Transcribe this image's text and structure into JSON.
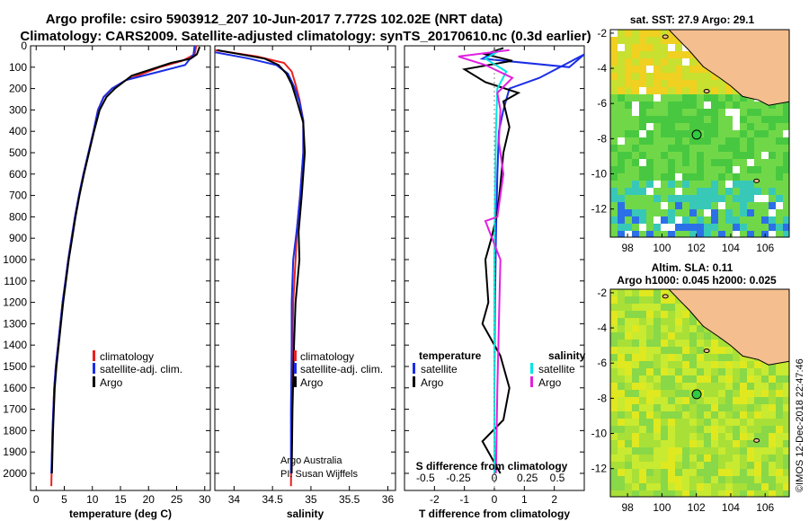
{
  "colors": {
    "climatology": "#e82020",
    "satellite": "#1a2ee6",
    "argo": "#000000",
    "salinity_sat": "#00e5e5",
    "salinity_argo": "#e020e0",
    "land": "#f4be8e",
    "ocean_base": "#6fd24a",
    "marker": "#2ecc40"
  },
  "title": {
    "line1": "Argo profile: csiro 5903912_207 10-Jun-2017 7.772S 102.02E (NRT data)",
    "line2": "Climatology: CARS2009. Satellite-adjusted climatology: synTS_20170610.nc (0.3d earlier)"
  },
  "credit": {
    "owner": "Argo Australia",
    "pi": "PI: Susan Wijffels",
    "stamp": "©IMOS 12-Dec-2018 22:47:46"
  },
  "chart_data": [
    {
      "type": "line",
      "name": "temperature",
      "xlabel": "temperature (deg C)",
      "ylabel": "",
      "xlim": [
        -1,
        31
      ],
      "ylim": [
        2080,
        0
      ],
      "xticks": [
        0,
        5,
        10,
        15,
        20,
        25,
        30
      ],
      "yticks": [
        0,
        100,
        200,
        300,
        400,
        500,
        600,
        700,
        800,
        900,
        1000,
        1100,
        1200,
        1300,
        1400,
        1500,
        1600,
        1700,
        1800,
        1900,
        2000
      ],
      "legend": [
        "climatology",
        "satellite-adj. clim.",
        "Argo"
      ],
      "series": [
        {
          "name": "climatology",
          "color_key": "climatology",
          "x": [
            28.5,
            28.2,
            26,
            22,
            16,
            13.5,
            12,
            11,
            10.2,
            9.3,
            8.4,
            7.6,
            6.9,
            6.3,
            5.7,
            5.2,
            4.7,
            4.3,
            3.9,
            3.5,
            3.2,
            2.9,
            2.7
          ],
          "y": [
            0,
            40,
            70,
            100,
            160,
            200,
            240,
            300,
            400,
            500,
            600,
            700,
            800,
            900,
            1000,
            1100,
            1200,
            1300,
            1400,
            1500,
            1600,
            1800,
            2060
          ]
        },
        {
          "name": "satellite-adj. clim.",
          "color_key": "satellite",
          "x": [
            28.2,
            28,
            26.5,
            22,
            16,
            13.5,
            12,
            11,
            10.2,
            9.3,
            8.4,
            7.6,
            6.9,
            6.3,
            5.7,
            5.2,
            4.7,
            4.3,
            3.9,
            3.5,
            3.2,
            2.9,
            2.7
          ],
          "y": [
            0,
            40,
            90,
            120,
            160,
            200,
            240,
            300,
            400,
            500,
            600,
            700,
            800,
            900,
            1000,
            1100,
            1200,
            1300,
            1400,
            1500,
            1600,
            1800,
            2000
          ]
        },
        {
          "name": "Argo",
          "color_key": "argo",
          "x": [
            29.1,
            28.6,
            27.5,
            24,
            17,
            14,
            12.5,
            11.3,
            10.3,
            9.4,
            8.5,
            7.7,
            7,
            6.4,
            5.8,
            5.3,
            4.8,
            4.4,
            4,
            3.6,
            3.3,
            3,
            2.8
          ],
          "y": [
            5,
            40,
            60,
            80,
            140,
            200,
            240,
            300,
            400,
            500,
            600,
            700,
            800,
            900,
            1000,
            1100,
            1200,
            1300,
            1400,
            1500,
            1600,
            1800,
            2000
          ]
        }
      ]
    },
    {
      "type": "line",
      "name": "salinity",
      "xlabel": "salinity",
      "xlim": [
        33.75,
        36.1
      ],
      "ylim": [
        2080,
        0
      ],
      "xticks": [
        34,
        34.5,
        35,
        35.5,
        36
      ],
      "legend": [
        "climatology",
        "satellite-adj. clim.",
        "Argo"
      ],
      "series": [
        {
          "name": "climatology",
          "color_key": "climatology",
          "x": [
            33.75,
            34.3,
            34.65,
            34.75,
            34.8,
            34.85,
            34.9,
            34.9,
            34.86,
            34.82,
            34.8,
            34.77,
            34.76,
            34.75,
            34.74
          ],
          "y": [
            20,
            50,
            80,
            120,
            180,
            250,
            350,
            500,
            700,
            850,
            1000,
            1200,
            1400,
            1700,
            2060
          ]
        },
        {
          "name": "satellite-adj. clim.",
          "color_key": "satellite",
          "x": [
            33.75,
            34.2,
            34.55,
            34.7,
            34.78,
            34.85,
            34.9,
            34.9,
            34.86,
            34.82,
            34.77,
            34.75,
            34.75,
            34.74,
            34.74
          ],
          "y": [
            30,
            60,
            90,
            130,
            190,
            260,
            350,
            500,
            700,
            850,
            1000,
            1200,
            1400,
            1700,
            2000
          ]
        },
        {
          "name": "Argo",
          "color_key": "argo",
          "x": [
            33.78,
            34.4,
            34.58,
            34.68,
            34.75,
            34.82,
            34.9,
            34.92,
            34.88,
            34.84,
            34.85,
            34.8,
            34.78,
            34.76,
            34.75
          ],
          "y": [
            20,
            60,
            90,
            130,
            180,
            260,
            360,
            500,
            700,
            870,
            1000,
            1200,
            1400,
            1700,
            2000
          ]
        }
      ]
    },
    {
      "type": "line",
      "name": "difference",
      "xlabel": "T difference from climatology",
      "secondary_label": "S difference from climatology",
      "xlim": [
        -3,
        3
      ],
      "ylim": [
        2080,
        0
      ],
      "xticks": [
        -2,
        -1,
        0,
        1,
        2
      ],
      "secondary_ticks": [
        "-0.5",
        "-0.25",
        "0",
        "0.25",
        "0.5"
      ],
      "legend_t_title": "temperature",
      "legend_s_title": "salinity",
      "legend": [
        "satellite",
        "Argo",
        "satellite",
        "Argo"
      ],
      "series": [
        {
          "name": "T satellite",
          "color_key": "satellite",
          "x": [
            0,
            -0.4,
            2.5,
            3,
            1.5,
            0.5,
            0.3,
            0.15,
            0.1,
            0.05,
            0.02,
            0,
            0
          ],
          "y": [
            30,
            60,
            100,
            40,
            150,
            200,
            300,
            400,
            600,
            900,
            1200,
            1600,
            2000
          ]
        },
        {
          "name": "T Argo",
          "color_key": "argo",
          "x": [
            0.3,
            -0.3,
            0.6,
            -1,
            -0.3,
            0.8,
            0.3,
            0.5,
            0.3,
            0.2,
            0.1,
            -0.1,
            -0.3,
            -0.2,
            -0.4,
            0.2,
            0.5,
            0.3,
            -0.4,
            0.2
          ],
          "y": [
            10,
            40,
            70,
            110,
            170,
            220,
            260,
            380,
            500,
            650,
            780,
            900,
            1000,
            1200,
            1300,
            1450,
            1600,
            1750,
            1850,
            2000
          ]
        },
        {
          "name": "S satellite",
          "color_key": "salinity_sat",
          "x": [
            0.2,
            -0.3,
            0.4,
            0.1,
            0.05,
            0.02,
            0,
            0,
            0
          ],
          "y": [
            20,
            60,
            120,
            200,
            400,
            700,
            1000,
            1500,
            2000
          ]
        },
        {
          "name": "S Argo",
          "color_key": "salinity_argo",
          "x": [
            0.5,
            -1.2,
            -0.3,
            0.6,
            0.1,
            0.2,
            0.15,
            0.3,
            0.1,
            -0.3,
            0.2,
            0.15,
            0.1,
            0.05
          ],
          "y": [
            20,
            50,
            90,
            150,
            220,
            300,
            450,
            600,
            800,
            820,
            1000,
            1300,
            1600,
            2000
          ]
        }
      ]
    },
    {
      "type": "heatmap",
      "name": "sst-map",
      "title": "sat. SST: 27.9 Argo: 29.1",
      "xlim": [
        97,
        107.4
      ],
      "ylim": [
        -13.6,
        -1.8
      ],
      "xticks": [
        98,
        100,
        102,
        104,
        106
      ],
      "yticks": [
        -2,
        -4,
        -6,
        -8,
        -10,
        -12
      ],
      "marker": {
        "lon": 102.02,
        "lat": -7.772
      }
    },
    {
      "type": "heatmap",
      "name": "sla-map",
      "title1": "Altim. SLA: 0.11",
      "title2": "Argo h1000: 0.045 h2000: 0.025",
      "xlim": [
        97,
        107.4
      ],
      "ylim": [
        -13.6,
        -1.8
      ],
      "xticks": [
        98,
        100,
        102,
        104,
        106
      ],
      "yticks": [
        -2,
        -4,
        -6,
        -8,
        -10,
        -12
      ],
      "marker": {
        "lon": 102.02,
        "lat": -7.772
      }
    }
  ]
}
